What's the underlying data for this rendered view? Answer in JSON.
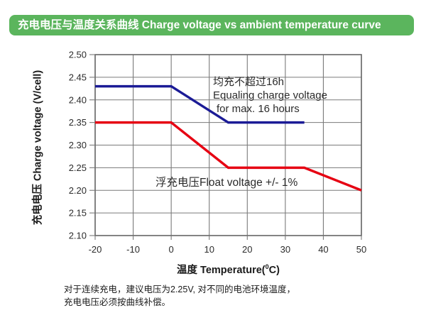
{
  "title_bar": {
    "text": "充电电压与温度关系曲线 Charge voltage vs ambient temperature curve",
    "bg_color": "#5bb55d",
    "text_color": "#ffffff"
  },
  "chart_data": {
    "type": "line",
    "xlabel_prefix": "温度 Temperature(",
    "xlabel_sup": "0",
    "xlabel_suffix": "C)",
    "ylabel": "充电电压 Charge voltage (V/cell)",
    "xlim": [
      -20,
      50
    ],
    "ylim": [
      2.1,
      2.5
    ],
    "x_ticks": [
      "-20",
      "-10",
      "0",
      "10",
      "20",
      "30",
      "40",
      "50"
    ],
    "y_ticks": [
      "2.50",
      "2.45",
      "2.40",
      "2.35",
      "2.30",
      "2.25",
      "2.20",
      "2.15",
      "2.10"
    ],
    "grid": true,
    "grid_color": "#7a7a7a",
    "border_color": "#666666",
    "tick_label_color": "#2b2b2b",
    "series": [
      {
        "name": "equalizing-charge-voltage",
        "color": "#1b1b96",
        "points": [
          [
            -20,
            2.43
          ],
          [
            0,
            2.43
          ],
          [
            15,
            2.35
          ],
          [
            35,
            2.35
          ]
        ]
      },
      {
        "name": "float-voltage",
        "color": "#e60012",
        "points": [
          [
            -20,
            2.35
          ],
          [
            0,
            2.35
          ],
          [
            15,
            2.25
          ],
          [
            35,
            2.25
          ],
          [
            50,
            2.2
          ]
        ]
      }
    ],
    "annotations": [
      {
        "lines": [
          "均充不超过16h",
          "Equaling charge voltage",
          "for max. 16 hours"
        ]
      },
      {
        "lines": [
          "浮充电压Float voltage +/- 1%"
        ]
      }
    ]
  },
  "notes": {
    "line1": "对于连续充电，建议电压为2.25V, 对不同的电池环境温度，",
    "line2": "充电电压必须按曲线补偿。"
  }
}
